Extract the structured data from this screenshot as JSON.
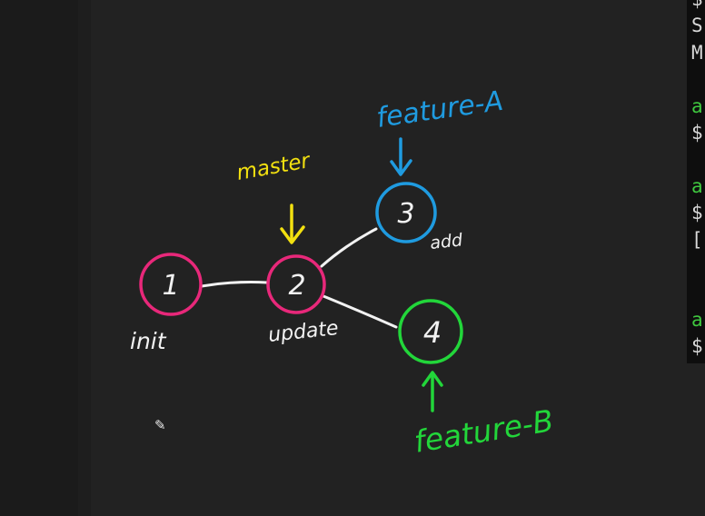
{
  "colors": {
    "background": "#222222",
    "pink": "#e8287a",
    "blue": "#1f9be0",
    "green": "#22d63a",
    "yellow": "#f2e010",
    "white": "#f2f2f2"
  },
  "terminal": {
    "lines": [
      {
        "text": "$",
        "color": "#d8d8d8"
      },
      {
        "text": "S",
        "color": "#d8d8d8"
      },
      {
        "text": "M",
        "color": "#d8d8d8"
      },
      {
        "text": "",
        "color": "#d8d8d8"
      },
      {
        "text": "a",
        "color": "#3fc83f"
      },
      {
        "text": "$",
        "color": "#d8d8d8"
      },
      {
        "text": "",
        "color": "#d8d8d8"
      },
      {
        "text": "a",
        "color": "#3fc83f"
      },
      {
        "text": "$",
        "color": "#d8d8d8"
      },
      {
        "text": "[",
        "color": "#d8d8d8"
      },
      {
        "text": "",
        "color": "#d8d8d8"
      },
      {
        "text": "",
        "color": "#d8d8d8"
      },
      {
        "text": "a",
        "color": "#3fc83f"
      },
      {
        "text": "$",
        "color": "#d8d8d8"
      }
    ]
  },
  "diagram": {
    "commits": [
      {
        "id": "1",
        "label": "init",
        "color": "#e8287a"
      },
      {
        "id": "2",
        "label": "update",
        "color": "#e8287a"
      },
      {
        "id": "3",
        "label": "add",
        "color": "#1f9be0"
      },
      {
        "id": "4",
        "label": "",
        "color": "#22d63a"
      }
    ],
    "branches": [
      {
        "name": "master",
        "color": "#f2e010",
        "points_to": "2"
      },
      {
        "name": "feature-A",
        "color": "#1f9be0",
        "points_to": "3"
      },
      {
        "name": "feature-B",
        "color": "#22d63a",
        "points_to": "4"
      }
    ]
  },
  "icons": {
    "cursor": "pencil-cursor-icon"
  }
}
